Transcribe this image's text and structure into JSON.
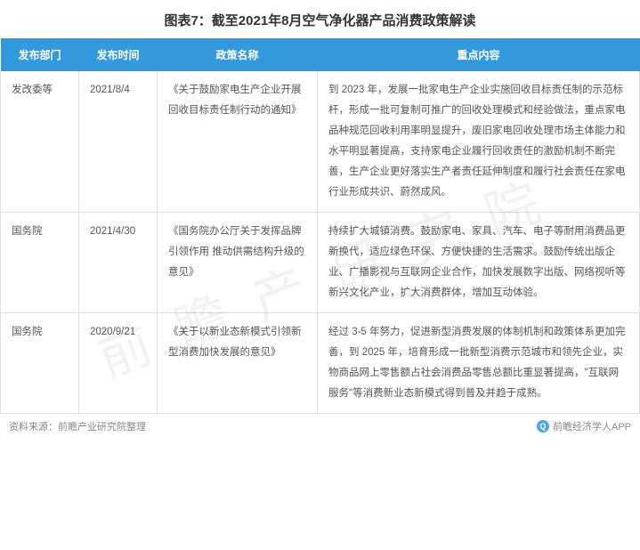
{
  "title": "图表7：截至2021年8月空气净化器产品消费政策解读",
  "header_bg": "#3399dd",
  "border_color": "#dddddd",
  "text_color": "#555555",
  "columns": [
    {
      "key": "dept",
      "label": "发布部门"
    },
    {
      "key": "date",
      "label": "发布时间"
    },
    {
      "key": "policy",
      "label": "政策名称"
    },
    {
      "key": "content",
      "label": "重点内容"
    }
  ],
  "rows": [
    {
      "dept": "发改委等",
      "date": "2021/8/4",
      "policy": "《关于鼓励家电生产企业开展回收目标责任制行动的通知》",
      "content": "到 2023 年，发展一批家电生产企业实施回收目标责任制的示范标杆，形成一批可复制可推广的回收处理模式和经验做法，重点家电品种规范回收利用率明显提升，废旧家电回收处理市场主体能力和水平明显著提高，支持家电企业履行回收责任的激励机制不断完善，生产企业更好落实生产者责任延伸制度和履行社会责任在家电行业形成共识、蔚然成风。"
    },
    {
      "dept": "国务院",
      "date": "2021/4/30",
      "policy": "《国务院办公厅关于发挥品牌引领作用 推动供需结构升级的意见》",
      "content": "持续扩大城镇消费。鼓励家电、家具、汽车、电子等耐用消费品更新换代，适应绿色环保、方便快捷的生活需求。鼓励传统出版企业、广播影视与互联网企业合作，加快发展数字出版、网络视听等新兴文化产业，扩大消费群体，增加互动体验。"
    },
    {
      "dept": "国务院",
      "date": "2020/9/21",
      "policy": "《关于以新业态新模式引领新型消费加快发展的意见》",
      "content": "经过 3-5 年努力，促进新型消费发展的体制机制和政策体系更加完善，到 2025 年，培育形成一批新型消费示范城市和领先企业，实物商品网上零售额占社会消费品零售总额比重显著提高，\"互联网 服务\"等消费新业态新模式得到普及并趋于成熟。"
    }
  ],
  "footer_left": "资料来源：前瞻产业研究院整理",
  "footer_right": "前瞻经济学人APP",
  "watermark": "前 瞻 产 研 究 院"
}
